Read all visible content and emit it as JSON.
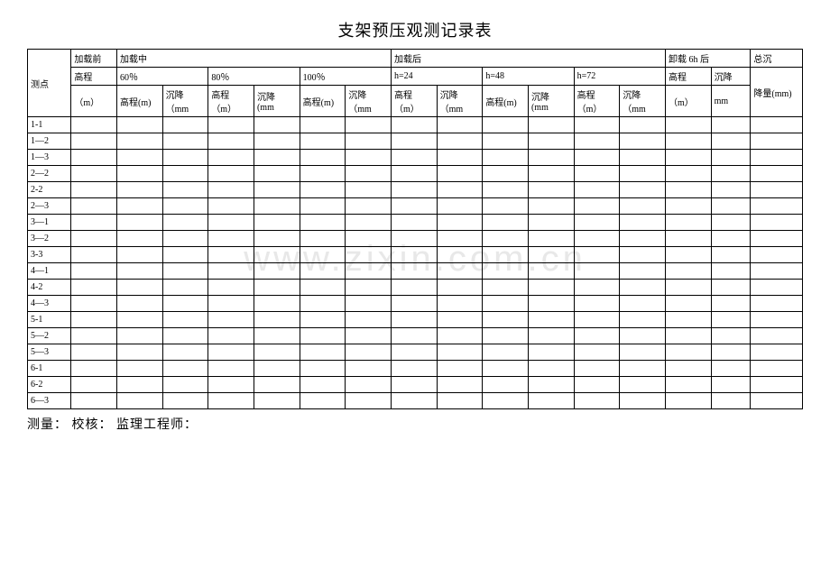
{
  "title": "支架预压观测记录表",
  "watermark": "www.zixin.com.cn",
  "headers": {
    "point": "测点",
    "pre_load": "加载前",
    "loading": "加载中",
    "post_load": "加载后",
    "unload_6h": "卸载 6h 后",
    "total_settle": "总沉",
    "elevation": "高程",
    "elevation_m": "（m）",
    "settle": "沉降",
    "settle_mm": "（mm",
    "settle_mm2": "(mm",
    "elev_m": "高程(m)",
    "elev_m2": "高程（m）",
    "settle_mm_lower": "mm",
    "fall_mm": "降量(mm)",
    "p60": "60％",
    "p80": "80％",
    "p100": "100％",
    "h24": "h=24",
    "h48": "h=48",
    "h72": "h=72"
  },
  "rows": [
    "1-1",
    "1—2",
    "1—3",
    "2—2",
    "2-2",
    "2—3",
    "3—1",
    "3—2",
    "3-3",
    "4—1",
    "4-2",
    "4—3",
    "5-1",
    "5—2",
    "5—3",
    "6-1",
    "6-2",
    "6—3"
  ],
  "footer": {
    "measure": "测量：",
    "check": "校核：",
    "supervisor": "监理工程师："
  }
}
